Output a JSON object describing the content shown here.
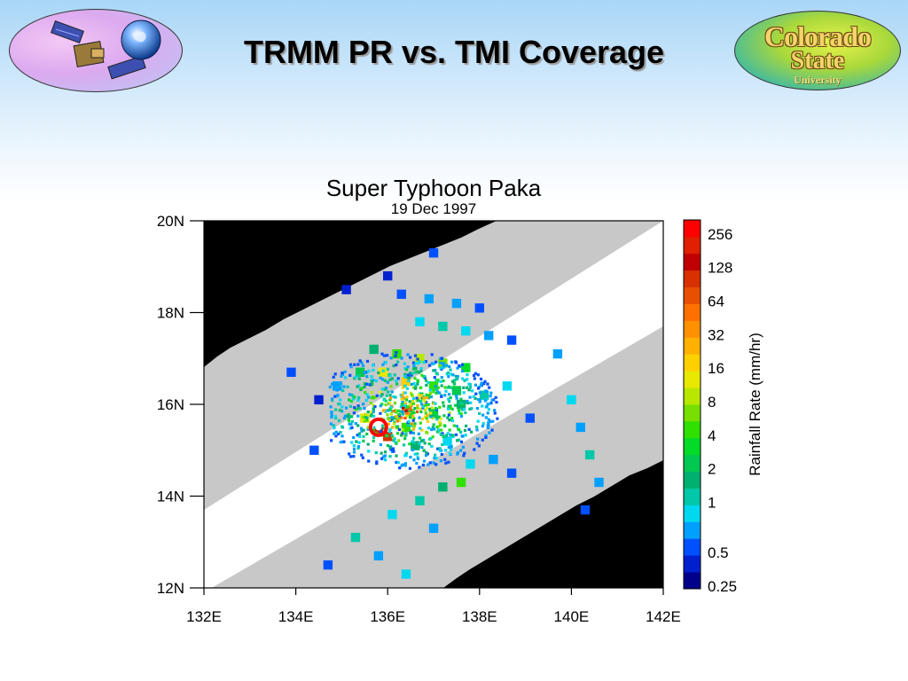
{
  "slide": {
    "title": "TRMM PR vs. TMI Coverage",
    "logo_left_icon": "trmm-satellite-earth-icon",
    "logo_right": {
      "line1": "Colorado",
      "line2": "State",
      "line3": "University"
    }
  },
  "colors": {
    "background_top": "#a9d6f7",
    "land_black": "#000000",
    "tmi_swath_gray": "#c8c8c8",
    "pr_swath_white": "#ffffff"
  },
  "chart_data": {
    "type": "heatmap",
    "title": "Super Typhoon Paka",
    "subtitle": "19 Dec 1997",
    "xlabel": "",
    "ylabel": "",
    "xlim": [
      132,
      142
    ],
    "ylim": [
      12,
      20
    ],
    "x_ticks": [
      {
        "value": 132,
        "label": "132E"
      },
      {
        "value": 134,
        "label": "134E"
      },
      {
        "value": 136,
        "label": "136E"
      },
      {
        "value": 138,
        "label": "138E"
      },
      {
        "value": 140,
        "label": "140E"
      },
      {
        "value": 142,
        "label": "142E"
      }
    ],
    "y_ticks": [
      {
        "value": 12,
        "label": "12N"
      },
      {
        "value": 14,
        "label": "14N"
      },
      {
        "value": 16,
        "label": "16N"
      },
      {
        "value": 18,
        "label": "18N"
      },
      {
        "value": 20,
        "label": "20N"
      }
    ],
    "colorbar": {
      "label": "Rainfall Rate (mm/hr)",
      "levels": [
        {
          "label": "0.25",
          "color": "#00008b"
        },
        {
          "label": "",
          "color": "#0020d0"
        },
        {
          "label": "0.5",
          "color": "#0050ff"
        },
        {
          "label": "",
          "color": "#00a0ff"
        },
        {
          "label": "",
          "color": "#00d8f0"
        },
        {
          "label": "1",
          "color": "#00c8a8"
        },
        {
          "label": "",
          "color": "#00b070"
        },
        {
          "label": "2",
          "color": "#00c850"
        },
        {
          "label": "",
          "color": "#00dc28"
        },
        {
          "label": "4",
          "color": "#30e000"
        },
        {
          "label": "",
          "color": "#78e000"
        },
        {
          "label": "8",
          "color": "#b8e800"
        },
        {
          "label": "",
          "color": "#e8e800"
        },
        {
          "label": "16",
          "color": "#ffd000"
        },
        {
          "label": "",
          "color": "#ffb000"
        },
        {
          "label": "32",
          "color": "#ff9000"
        },
        {
          "label": "",
          "color": "#ff7000"
        },
        {
          "label": "64",
          "color": "#e85000"
        },
        {
          "label": "",
          "color": "#d83000"
        },
        {
          "label": "128",
          "color": "#c00000"
        },
        {
          "label": "",
          "color": "#e02000"
        },
        {
          "label": "256",
          "color": "#ff0000"
        }
      ]
    },
    "typhoon_center": {
      "lon": 135.8,
      "lat": 15.5
    },
    "rain_cells": [
      [
        135.0,
        18.6,
        1
      ],
      [
        136.2,
        18.5,
        2
      ],
      [
        136.8,
        18.4,
        3
      ],
      [
        137.4,
        18.3,
        3
      ],
      [
        137.9,
        18.2,
        2
      ],
      [
        136.6,
        17.9,
        4
      ],
      [
        137.1,
        17.8,
        5
      ],
      [
        137.6,
        17.7,
        4
      ],
      [
        138.1,
        17.6,
        3
      ],
      [
        138.6,
        17.5,
        2
      ],
      [
        135.6,
        17.3,
        6
      ],
      [
        136.1,
        17.2,
        9
      ],
      [
        136.6,
        17.1,
        11
      ],
      [
        137.1,
        17.0,
        10
      ],
      [
        137.6,
        16.9,
        8
      ],
      [
        135.3,
        16.8,
        7
      ],
      [
        135.8,
        16.8,
        12
      ],
      [
        136.3,
        16.6,
        13
      ],
      [
        136.9,
        16.5,
        9
      ],
      [
        137.4,
        16.4,
        7
      ],
      [
        135.4,
        15.8,
        12
      ],
      [
        135.7,
        15.5,
        20
      ],
      [
        135.9,
        15.4,
        18
      ],
      [
        136.3,
        15.6,
        9
      ],
      [
        136.9,
        15.9,
        7
      ],
      [
        137.5,
        16.1,
        6
      ],
      [
        138.0,
        16.3,
        5
      ],
      [
        138.5,
        16.5,
        4
      ],
      [
        136.5,
        15.2,
        6
      ],
      [
        137.2,
        15.3,
        4
      ],
      [
        137.5,
        14.4,
        9
      ],
      [
        137.1,
        14.3,
        6
      ],
      [
        136.6,
        14.0,
        5
      ],
      [
        136.0,
        13.7,
        4
      ],
      [
        137.7,
        14.8,
        4
      ],
      [
        135.2,
        13.2,
        5
      ],
      [
        135.7,
        12.8,
        3
      ],
      [
        136.3,
        12.4,
        4
      ],
      [
        134.6,
        12.6,
        2
      ],
      [
        136.9,
        13.4,
        3
      ],
      [
        139.9,
        16.2,
        4
      ],
      [
        140.1,
        15.6,
        3
      ],
      [
        140.3,
        15.0,
        5
      ],
      [
        140.5,
        14.4,
        3
      ],
      [
        140.2,
        13.8,
        2
      ],
      [
        139.6,
        17.2,
        3
      ],
      [
        134.3,
        15.1,
        2
      ],
      [
        134.8,
        16.5,
        3
      ],
      [
        134.4,
        16.2,
        1
      ],
      [
        133.8,
        16.8,
        2
      ],
      [
        138.2,
        14.9,
        3
      ],
      [
        138.6,
        14.6,
        2
      ],
      [
        139.0,
        15.8,
        2
      ],
      [
        135.9,
        18.9,
        1
      ],
      [
        136.9,
        19.4,
        2
      ]
    ]
  }
}
